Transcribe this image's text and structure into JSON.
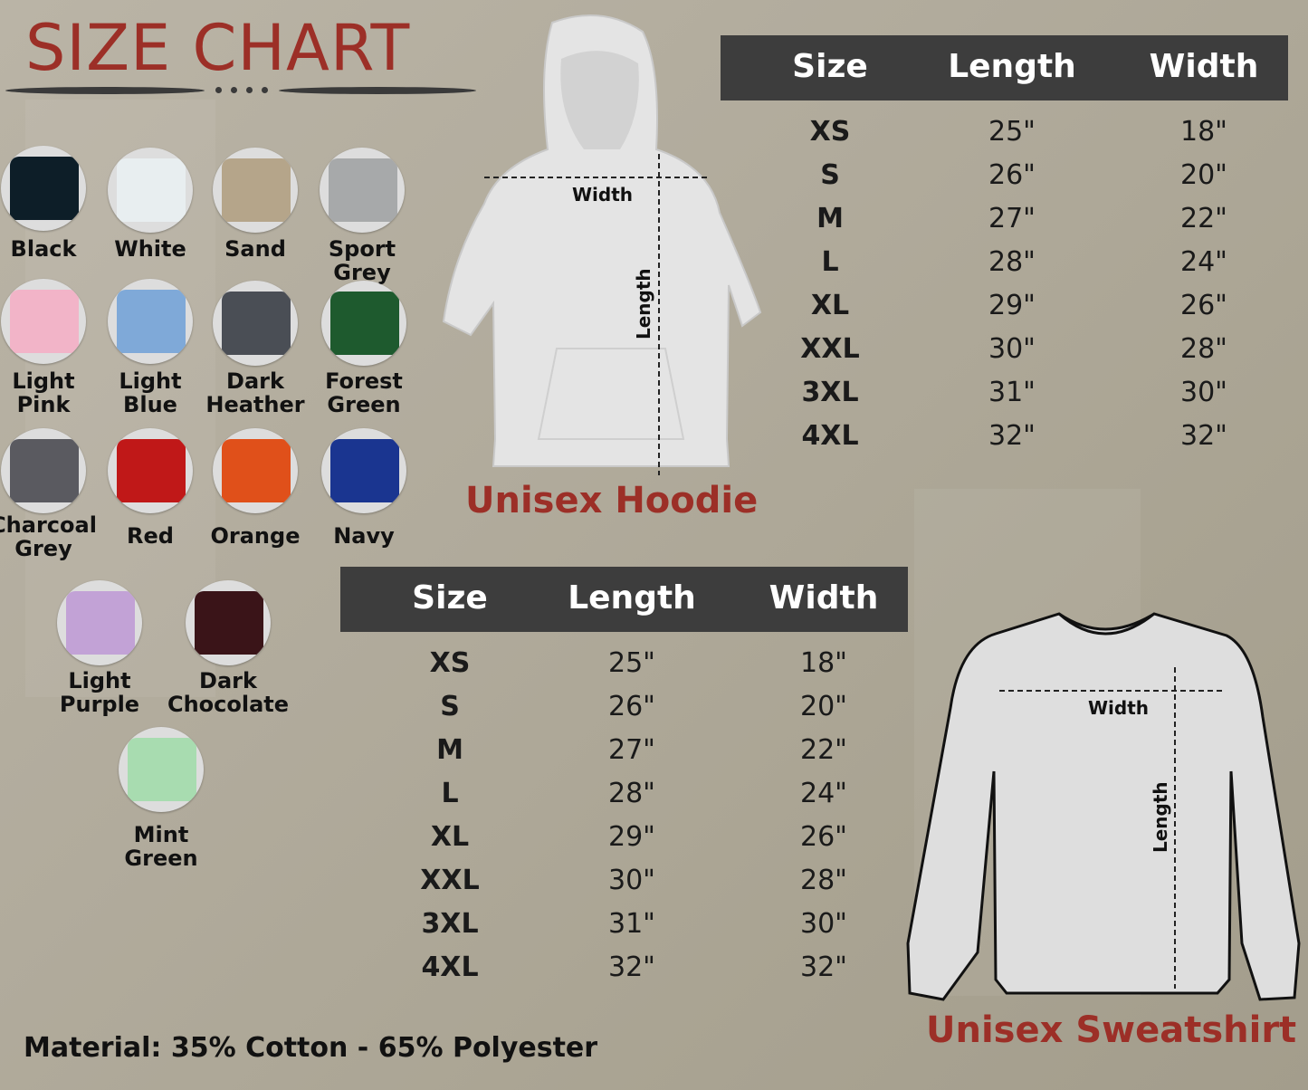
{
  "title": "SIZE CHART",
  "colors": [
    {
      "label": "Black",
      "hex": "#0d1e28"
    },
    {
      "label": "White",
      "hex": "#e8eef0"
    },
    {
      "label": "Sand",
      "hex": "#b5a58a"
    },
    {
      "label": "Sport Grey",
      "hex": "#a7a9aa"
    },
    {
      "label": "Light\nPink",
      "hex": "#f2b4c8"
    },
    {
      "label": "Light\nBlue",
      "hex": "#7fa9d8"
    },
    {
      "label": "Dark\nHeather",
      "hex": "#4a4e55"
    },
    {
      "label": "Forest\nGreen",
      "hex": "#1e5a2e"
    },
    {
      "label": "Charcoal\nGrey",
      "hex": "#5a5a60"
    },
    {
      "label": "Red",
      "hex": "#c01818"
    },
    {
      "label": "Orange",
      "hex": "#e0501a"
    },
    {
      "label": "Navy",
      "hex": "#1a3590"
    },
    {
      "label": "Light\nPurple",
      "hex": "#c2a2d6"
    },
    {
      "label": "Dark\nChocolate",
      "hex": "#3a1418"
    },
    {
      "label": "Mint\nGreen",
      "hex": "#a8dcb0"
    }
  ],
  "hoodie": {
    "caption": "Unisex Hoodie",
    "width_label": "Width",
    "length_label": "Length",
    "table": {
      "headers": [
        "Size",
        "Length",
        "Width"
      ],
      "rows": [
        [
          "XS",
          "25\"",
          "18\""
        ],
        [
          "S",
          "26\"",
          "20\""
        ],
        [
          "M",
          "27\"",
          "22\""
        ],
        [
          "L",
          "28\"",
          "24\""
        ],
        [
          "XL",
          "29\"",
          "26\""
        ],
        [
          "XXL",
          "30\"",
          "28\""
        ],
        [
          "3XL",
          "31\"",
          "30\""
        ],
        [
          "4XL",
          "32\"",
          "32\""
        ]
      ]
    }
  },
  "sweatshirt": {
    "caption": "Unisex Sweatshirt",
    "width_label": "Width",
    "length_label": "Length",
    "table": {
      "headers": [
        "Size",
        "Length",
        "Width"
      ],
      "rows": [
        [
          "XS",
          "25\"",
          "18\""
        ],
        [
          "S",
          "26\"",
          "20\""
        ],
        [
          "M",
          "27\"",
          "22\""
        ],
        [
          "L",
          "28\"",
          "24\""
        ],
        [
          "XL",
          "29\"",
          "26\""
        ],
        [
          "XXL",
          "30\"",
          "28\""
        ],
        [
          "3XL",
          "31\"",
          "30\""
        ],
        [
          "4XL",
          "32\"",
          "32\""
        ]
      ]
    }
  },
  "material": "Material: 35% Cotton - 65% Polyester",
  "theme": {
    "title_color": "#9c2f27",
    "header_bg": "#3d3d3d"
  }
}
